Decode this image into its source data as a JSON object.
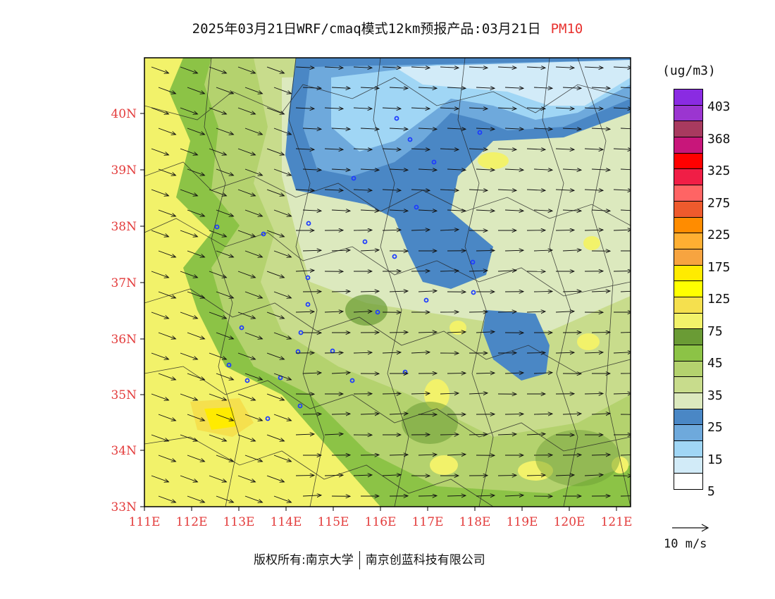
{
  "title": {
    "main": "2025年03月21日WRF/cmaq模式12km预报产品:03月21日",
    "variable": "PM10"
  },
  "map": {
    "lat_labels": [
      "40N",
      "39N",
      "38N",
      "37N",
      "36N",
      "35N",
      "34N",
      "33N"
    ],
    "lon_labels": [
      "111E",
      "112E",
      "113E",
      "114E",
      "115E",
      "116E",
      "117E",
      "118E",
      "119E",
      "120E",
      "121E"
    ],
    "axis_color": "#e33b3b"
  },
  "legend": {
    "unit": "(ug/m3)",
    "colors": [
      "#8a2be2",
      "#9b35d0",
      "#a83a5f",
      "#c8167a",
      "#ff0000",
      "#f01e46",
      "#ff6464",
      "#ee5a2d",
      "#ff8c00",
      "#ffaf32",
      "#f7a440",
      "#ffeb00",
      "#ffff00",
      "#f5e04e",
      "#f2f26a",
      "#6a9b35",
      "#8cc346",
      "#b4d26e",
      "#c8dc8c",
      "#dce9be",
      "#4a87c5",
      "#6ea9dc",
      "#a0d6f5",
      "#d2ebf8",
      "#ffffff"
    ],
    "labels": [
      "403",
      "368",
      "325",
      "275",
      "225",
      "175",
      "125",
      "75",
      "45",
      "35",
      "25",
      "15",
      "5"
    ]
  },
  "wind_reference": {
    "label": "10 m/s"
  },
  "footer": {
    "left": "版权所有:南京大学",
    "right": "南京创蓝科技有限公司"
  }
}
